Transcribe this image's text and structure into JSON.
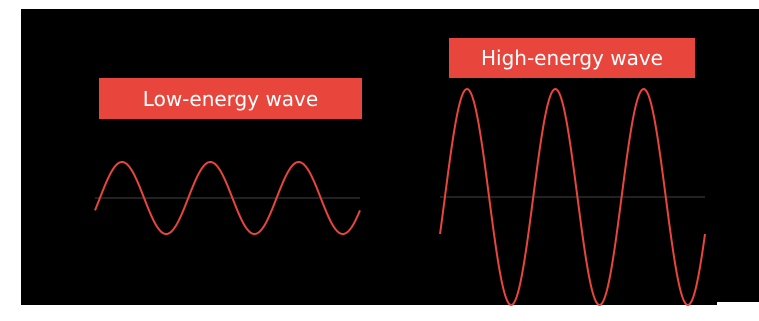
{
  "labels": {
    "low": "Low-energy wave",
    "high": "High-energy wave"
  },
  "colors": {
    "background": "#000000",
    "wave": "#e8453c",
    "label_bg": "#e8453c",
    "label_text": "#ffffff",
    "axis": "#444444"
  },
  "waves": {
    "low": {
      "cycles": 3,
      "relative_amplitude": 1
    },
    "high": {
      "cycles": 3,
      "relative_amplitude": 3
    }
  }
}
